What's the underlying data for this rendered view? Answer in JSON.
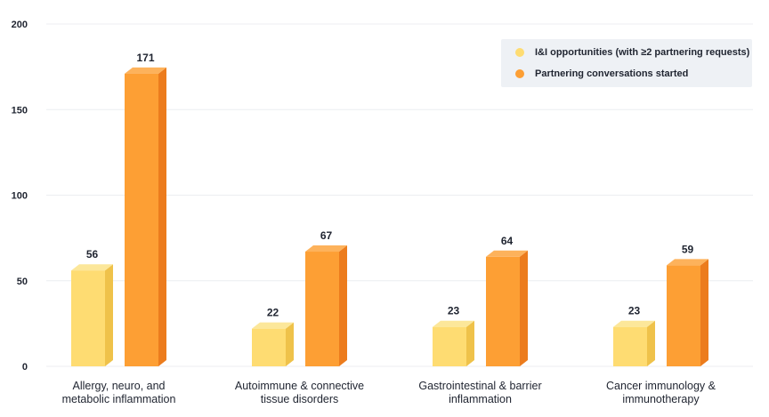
{
  "chart_data": {
    "type": "bar",
    "categories": [
      [
        "Allergy, neuro, and",
        "metabolic inflammation"
      ],
      [
        "Autoimmune & connective",
        "tissue disorders"
      ],
      [
        "Gastrointestinal & barrier",
        "inflammation"
      ],
      [
        "Cancer immunology &",
        "immunotherapy"
      ]
    ],
    "series": [
      {
        "name": "I&I opportunities (with ≥2 partnering requests)",
        "values": [
          56,
          22,
          23,
          23
        ],
        "color_front": "#fedc72",
        "color_side": "#efc24a",
        "color_top": "#fce79a"
      },
      {
        "name": "Partnering conversations started",
        "values": [
          171,
          67,
          64,
          59
        ],
        "color_front": "#fd9f34",
        "color_side": "#ec7c1d",
        "color_top": "#fdb25b"
      }
    ],
    "yticks": [
      0,
      50,
      100,
      150,
      200
    ],
    "ylim": [
      0,
      200
    ],
    "grid": true,
    "legend_position": "top-right",
    "data_labels": true
  },
  "legend": {
    "items": [
      {
        "label": "I&I opportunities (with ≥2 partnering requests)",
        "color": "#fedc72"
      },
      {
        "label": "Partnering conversations started",
        "color": "#fd9f34"
      }
    ]
  }
}
